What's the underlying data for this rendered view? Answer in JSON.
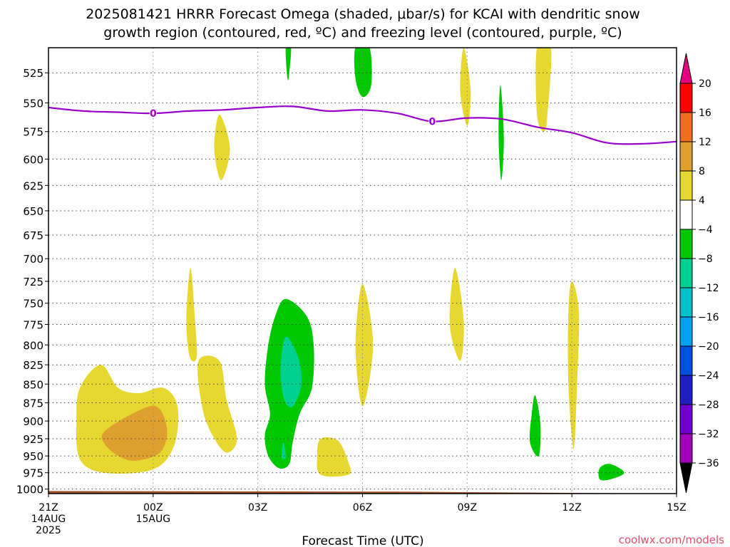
{
  "chart_data": {
    "type": "contour",
    "title": "2025081421 HRRR Forecast Omega (shaded, μbar/s) for KCAI with dendritic snow growth region (contoured, red, ºC) and freezing level (contoured, purple, ºC)",
    "title_lines": [
      "2025081421 HRRR Forecast Omega (shaded, μbar/s) for KCAI with dendritic snow",
      "growth region (contoured, red, ºC) and freezing level (contoured, purple, ºC)"
    ],
    "xlabel": "Forecast Time (UTC)",
    "ylabel": "",
    "credit": "coolwx.com/models",
    "x_ticks": [
      {
        "hour": 0,
        "lines": [
          "21Z",
          "14AUG",
          "2025"
        ]
      },
      {
        "hour": 3,
        "lines": [
          "00Z",
          "15AUG"
        ]
      },
      {
        "hour": 6,
        "lines": [
          "03Z"
        ]
      },
      {
        "hour": 9,
        "lines": [
          "06Z"
        ]
      },
      {
        "hour": 12,
        "lines": [
          "09Z"
        ]
      },
      {
        "hour": 15,
        "lines": [
          "12Z"
        ]
      },
      {
        "hour": 18,
        "lines": [
          "15Z"
        ]
      }
    ],
    "xlim": [
      0,
      18
    ],
    "y_ticks": [
      525,
      550,
      575,
      600,
      625,
      650,
      675,
      700,
      725,
      750,
      775,
      800,
      825,
      850,
      875,
      900,
      925,
      950,
      975,
      1000
    ],
    "ylim": [
      505,
      1007
    ],
    "y_scale": "log-pressure",
    "grid": true,
    "colorbar": {
      "levels": [
        20,
        16,
        12,
        8,
        4,
        -4,
        -8,
        -12,
        -16,
        -20,
        -24,
        -28,
        -32,
        -36
      ],
      "colors": [
        "#ff0000",
        "#f07020",
        "#e0a030",
        "#e6d830",
        "#ffffff",
        "#00c800",
        "#00d090",
        "#00c0c8",
        "#00a0f0",
        "#0050e0",
        "#2020c0",
        "#7000d0",
        "#a000b8",
        "#a0a0a0"
      ],
      "top_color": "#e6007e",
      "bottom_color": "#000000"
    },
    "omega_regions": [
      {
        "level": "4",
        "color": "#e6d830",
        "points": [
          [
            1.5,
            825
          ],
          [
            2.0,
            855
          ],
          [
            2.6,
            862
          ],
          [
            3.3,
            855
          ],
          [
            3.7,
            880
          ],
          [
            3.6,
            935
          ],
          [
            3.0,
            970
          ],
          [
            1.6,
            975
          ],
          [
            0.9,
            955
          ],
          [
            0.8,
            900
          ],
          [
            0.9,
            855
          ]
        ]
      },
      {
        "level": "8",
        "color": "#e0a030",
        "points": [
          [
            1.6,
            915
          ],
          [
            2.4,
            890
          ],
          [
            3.1,
            880
          ],
          [
            3.4,
            912
          ],
          [
            3.2,
            945
          ],
          [
            2.5,
            957
          ],
          [
            2.0,
            950
          ],
          [
            1.6,
            932
          ]
        ]
      },
      {
        "level": "4",
        "color": "#e6d830",
        "points": [
          [
            4.3,
            820
          ],
          [
            4.9,
            820
          ],
          [
            5.1,
            870
          ],
          [
            5.4,
            925
          ],
          [
            5.1,
            945
          ],
          [
            4.7,
            920
          ],
          [
            4.4,
            880
          ]
        ]
      },
      {
        "level": "4",
        "color": "#e6d830",
        "points": [
          [
            4.07,
            710
          ],
          [
            4.2,
            770
          ],
          [
            4.25,
            815
          ],
          [
            4.05,
            815
          ],
          [
            3.95,
            770
          ]
        ]
      },
      {
        "level": "4",
        "color": "#e6d830",
        "points": [
          [
            7.8,
            925
          ],
          [
            8.3,
            928
          ],
          [
            8.6,
            960
          ],
          [
            8.6,
            978
          ],
          [
            7.8,
            978
          ],
          [
            7.7,
            950
          ]
        ]
      },
      {
        "level": "4",
        "color": "#e6d830",
        "points": [
          [
            9.0,
            728
          ],
          [
            9.3,
            800
          ],
          [
            9.0,
            880
          ],
          [
            8.8,
            800
          ]
        ]
      },
      {
        "level": "4",
        "color": "#e6d830",
        "points": [
          [
            11.65,
            710
          ],
          [
            11.9,
            770
          ],
          [
            11.8,
            820
          ],
          [
            11.5,
            775
          ]
        ]
      },
      {
        "level": "4",
        "color": "#e6d830",
        "points": [
          [
            15.0,
            725
          ],
          [
            15.2,
            760
          ],
          [
            15.15,
            850
          ],
          [
            15.05,
            940
          ],
          [
            14.9,
            850
          ],
          [
            14.9,
            760
          ]
        ]
      },
      {
        "level": "4",
        "color": "#e6d830",
        "points": [
          [
            4.9,
            560
          ],
          [
            5.2,
            590
          ],
          [
            4.95,
            620
          ],
          [
            4.75,
            590
          ]
        ]
      },
      {
        "level": "4",
        "color": "#e6d830",
        "points": [
          [
            11.9,
            505
          ],
          [
            12.1,
            540
          ],
          [
            12.0,
            570
          ],
          [
            11.8,
            540
          ]
        ]
      },
      {
        "level": "4",
        "color": "#e6d830",
        "points": [
          [
            14.0,
            505
          ],
          [
            14.4,
            505
          ],
          [
            14.3,
            560
          ],
          [
            14.2,
            575
          ],
          [
            14.0,
            560
          ]
        ]
      },
      {
        "level": "-4",
        "color": "#00c800",
        "points": [
          [
            6.8,
            745
          ],
          [
            7.4,
            765
          ],
          [
            7.6,
            800
          ],
          [
            7.55,
            855
          ],
          [
            7.2,
            890
          ],
          [
            7.0,
            930
          ],
          [
            6.9,
            962
          ],
          [
            6.6,
            968
          ],
          [
            6.3,
            950
          ],
          [
            6.2,
            920
          ],
          [
            6.35,
            890
          ],
          [
            6.2,
            850
          ],
          [
            6.3,
            800
          ],
          [
            6.5,
            765
          ]
        ]
      },
      {
        "level": "-8",
        "color": "#00d090",
        "points": [
          [
            6.8,
            790
          ],
          [
            7.15,
            815
          ],
          [
            7.25,
            850
          ],
          [
            7.0,
            880
          ],
          [
            6.75,
            870
          ],
          [
            6.65,
            830
          ]
        ]
      },
      {
        "level": "-8",
        "color": "#00d090",
        "points": [
          [
            6.73,
            930
          ],
          [
            6.8,
            950
          ],
          [
            6.73,
            955
          ],
          [
            6.68,
            950
          ]
        ]
      },
      {
        "level": "-4",
        "color": "#00c800",
        "points": [
          [
            8.8,
            505
          ],
          [
            9.2,
            505
          ],
          [
            9.25,
            535
          ],
          [
            9.0,
            545
          ],
          [
            8.8,
            530
          ]
        ]
      },
      {
        "level": "-4",
        "color": "#00c800",
        "points": [
          [
            6.8,
            505
          ],
          [
            6.95,
            505
          ],
          [
            6.9,
            525
          ],
          [
            6.85,
            530
          ]
        ]
      },
      {
        "level": "-4",
        "color": "#00c800",
        "points": [
          [
            12.95,
            535
          ],
          [
            13.05,
            580
          ],
          [
            12.98,
            620
          ],
          [
            12.9,
            580
          ]
        ]
      },
      {
        "level": "-4",
        "color": "#00c800",
        "points": [
          [
            13.95,
            865
          ],
          [
            14.1,
            905
          ],
          [
            14.05,
            950
          ],
          [
            13.8,
            930
          ],
          [
            13.85,
            890
          ]
        ]
      },
      {
        "level": "-4",
        "color": "#00c800",
        "points": [
          [
            15.8,
            968
          ],
          [
            16.1,
            962
          ],
          [
            16.5,
            975
          ],
          [
            16.1,
            985
          ],
          [
            15.8,
            985
          ]
        ]
      }
    ],
    "freezing_level": {
      "color": "#9900cc",
      "label": "0",
      "label_positions": [
        [
          3.0,
          559
        ],
        [
          11.0,
          566
        ]
      ],
      "points": [
        [
          0,
          554
        ],
        [
          1,
          557
        ],
        [
          2,
          558
        ],
        [
          3,
          559
        ],
        [
          4,
          557
        ],
        [
          5,
          556
        ],
        [
          6,
          554
        ],
        [
          7,
          553
        ],
        [
          8,
          557
        ],
        [
          9,
          556
        ],
        [
          10,
          559
        ],
        [
          11,
          566
        ],
        [
          12,
          563
        ],
        [
          13,
          564
        ],
        [
          14,
          571
        ],
        [
          15,
          576
        ],
        [
          16,
          585
        ],
        [
          17,
          586
        ],
        [
          18,
          584
        ]
      ]
    },
    "terrain": {
      "color": "#a0522d",
      "top_left": 1003,
      "top_right": 1007
    }
  }
}
